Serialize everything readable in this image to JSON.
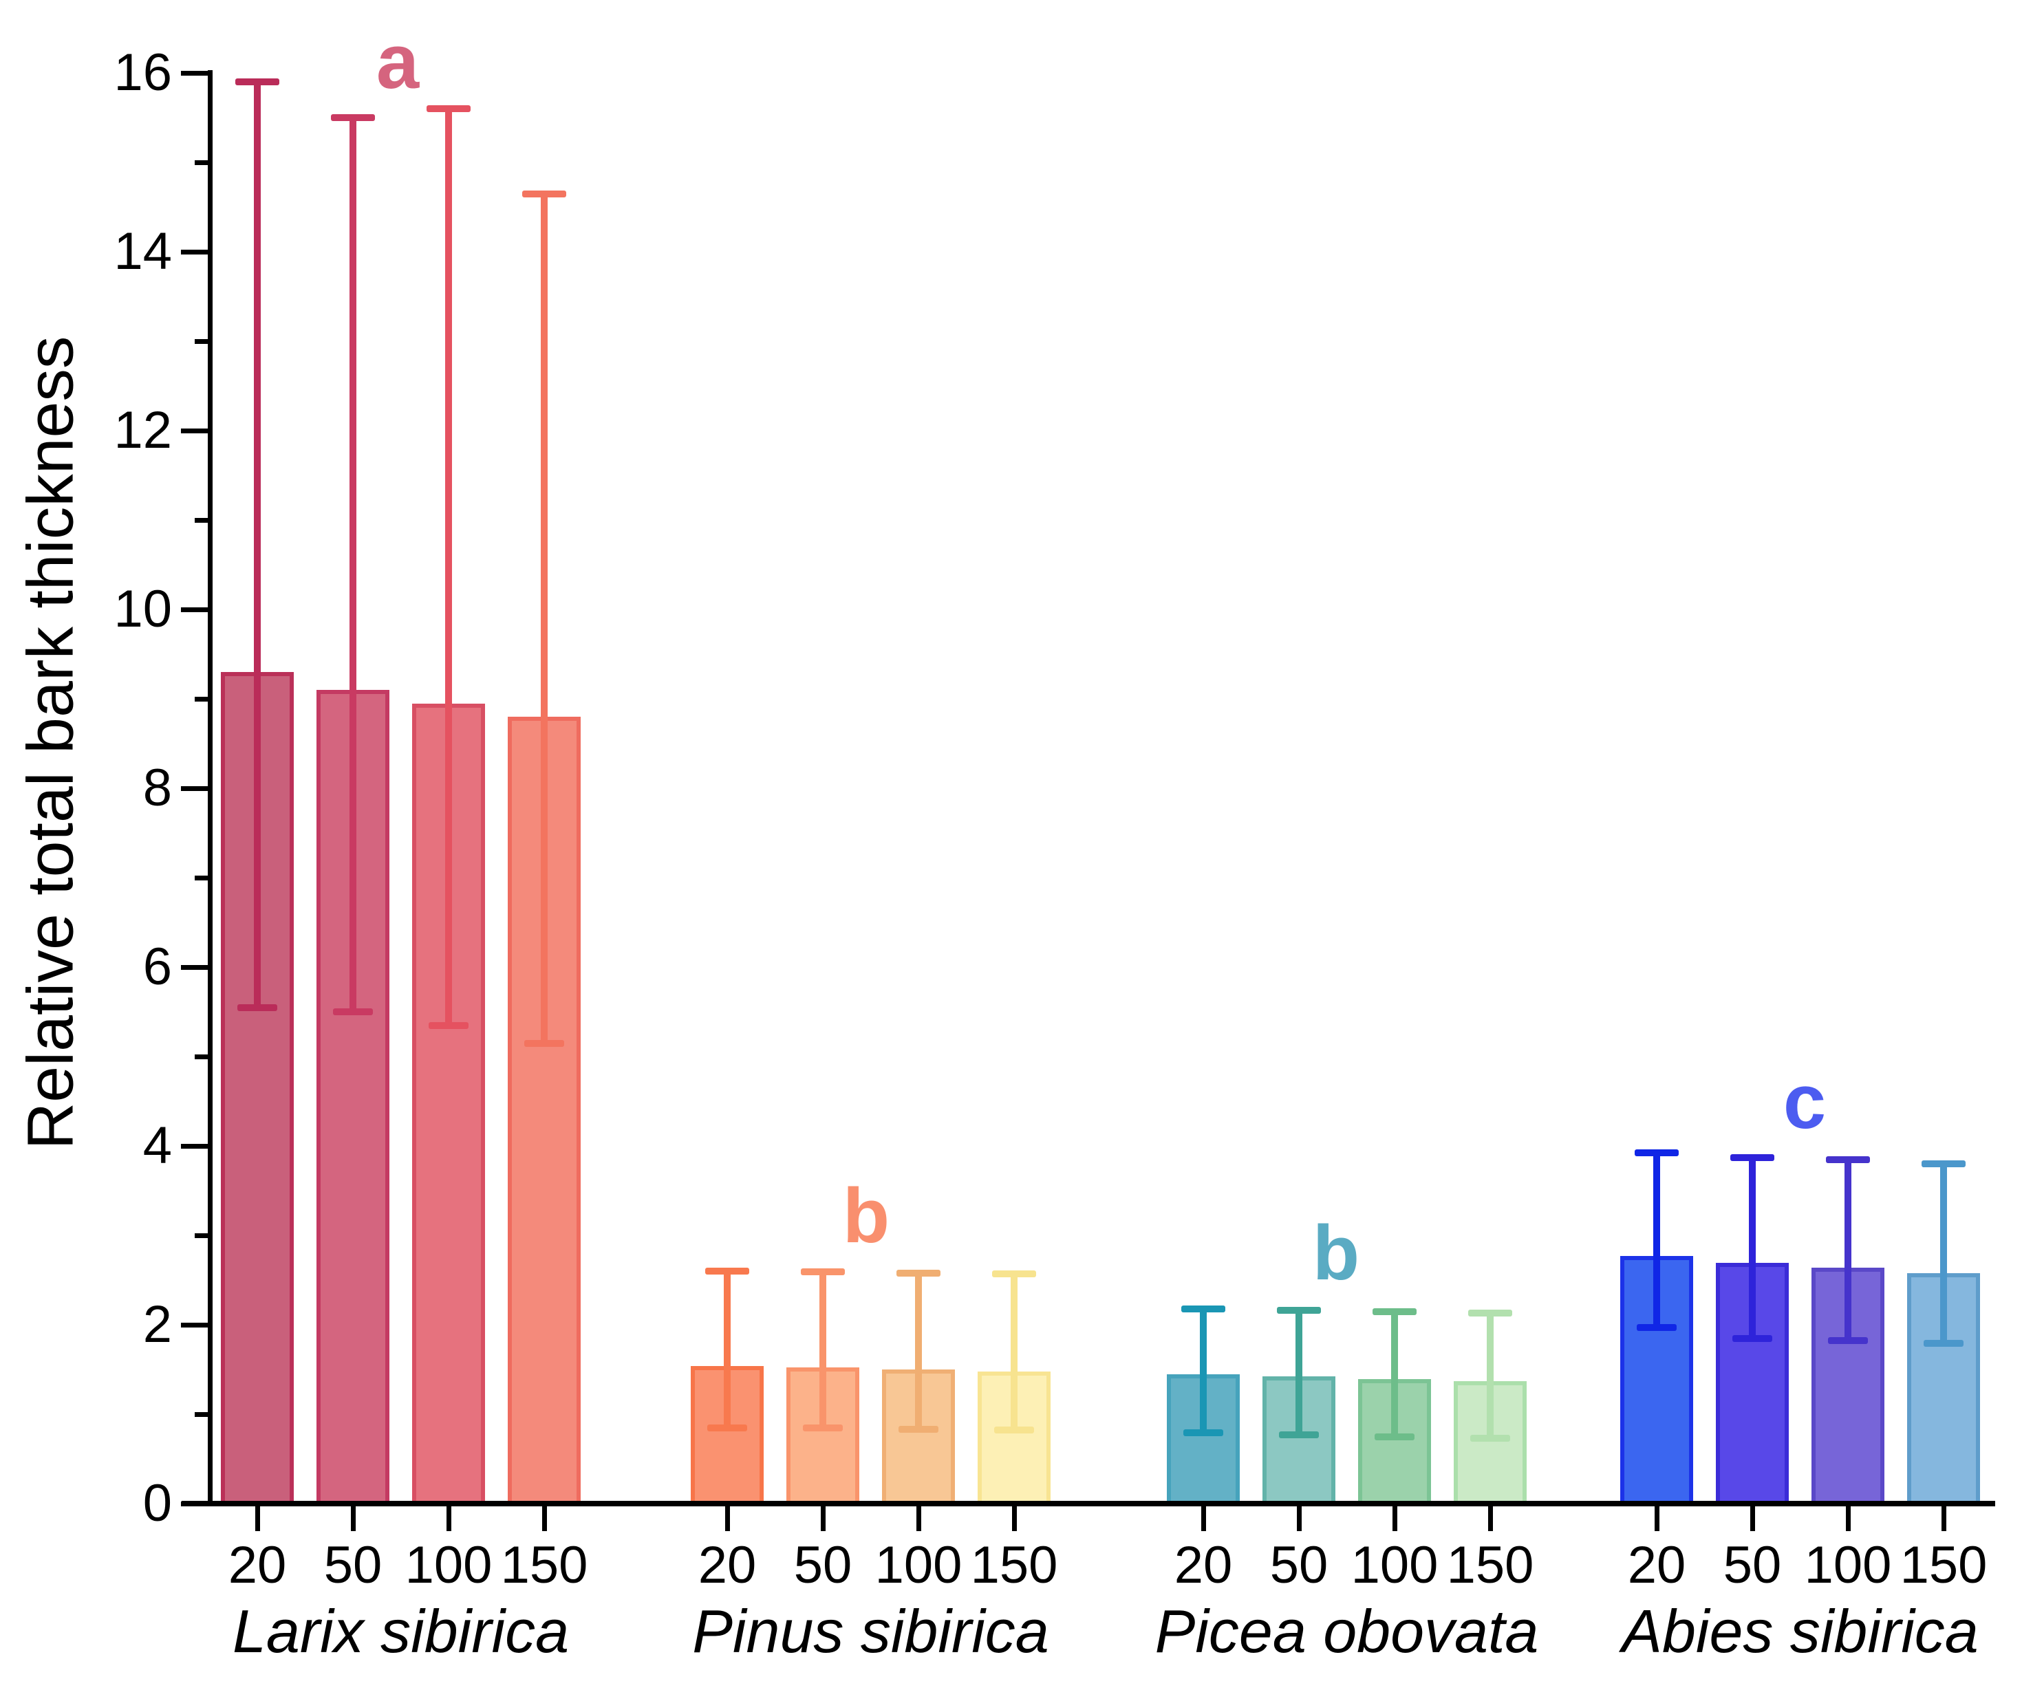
{
  "chart_data": {
    "type": "bar",
    "title": "",
    "xlabel": "",
    "ylabel": "Relative total bark thickness",
    "ylim": [
      0,
      16
    ],
    "y_major_ticks": [
      0,
      2,
      4,
      6,
      8,
      10,
      12,
      14,
      16
    ],
    "y_minor_ticks": [
      1,
      3,
      5,
      7,
      9,
      11,
      13,
      15
    ],
    "grid": "off",
    "legend": "none",
    "error_bars": "asymmetric whiskers with caps",
    "age_categories": [
      "20",
      "50",
      "100",
      "150"
    ],
    "axis_color": "#000000",
    "background_color": "#ffffff",
    "groups": [
      {
        "species": "Larix sibirica",
        "letter": "a",
        "letter_color": "#d5647e",
        "letter_cx": 578,
        "letter_cy": 90,
        "bars": [
          {
            "age": "20",
            "mean": 9.3,
            "err_low": 5.55,
            "err_high": 15.9,
            "fill": "#c9607b",
            "border": "#ba3058",
            "whisker": "#ba2c59"
          },
          {
            "age": "50",
            "mean": 9.1,
            "err_low": 5.5,
            "err_high": 15.5,
            "fill": "#d4657f",
            "border": "#c43a62",
            "whisker": "#c93a62"
          },
          {
            "age": "100",
            "mean": 8.95,
            "err_low": 5.35,
            "err_high": 15.6,
            "fill": "#e6727e",
            "border": "#d84f63",
            "whisker": "#e55260"
          },
          {
            "age": "150",
            "mean": 8.8,
            "err_low": 5.15,
            "err_high": 14.65,
            "fill": "#f48a7b",
            "border": "#ef6c5f",
            "whisker": "#f3745f"
          }
        ]
      },
      {
        "species": "Pinus sibirica",
        "letter": "b",
        "letter_color": "#f98f6e",
        "letter_cx": 1259,
        "letter_cy": 1768,
        "bars": [
          {
            "age": "20",
            "mean": 1.54,
            "err_low": 0.85,
            "err_high": 2.6,
            "fill": "#fa9270",
            "border": "#f77549",
            "whisker": "#f8794e"
          },
          {
            "age": "50",
            "mean": 1.52,
            "err_low": 0.85,
            "err_high": 2.59,
            "fill": "#fcb28a",
            "border": "#f9946b",
            "whisker": "#f9946b"
          },
          {
            "age": "100",
            "mean": 1.5,
            "err_low": 0.83,
            "err_high": 2.58,
            "fill": "#f8c795",
            "border": "#f0af74",
            "whisker": "#f0ae72"
          },
          {
            "age": "150",
            "mean": 1.48,
            "err_low": 0.82,
            "err_high": 2.57,
            "fill": "#fdf0b5",
            "border": "#f8e492",
            "whisker": "#f7e38f"
          }
        ]
      },
      {
        "species": "Picea obovata",
        "letter": "b",
        "letter_color": "#5aabc3",
        "letter_cx": 1942,
        "letter_cy": 1822,
        "bars": [
          {
            "age": "20",
            "mean": 1.45,
            "err_low": 0.79,
            "err_high": 2.18,
            "fill": "#63b1c6",
            "border": "#46a3bc",
            "whisker": "#1a96b4"
          },
          {
            "age": "50",
            "mean": 1.42,
            "err_low": 0.77,
            "err_high": 2.16,
            "fill": "#8cc8c2",
            "border": "#62b3a9",
            "whisker": "#3fa496"
          },
          {
            "age": "100",
            "mean": 1.39,
            "err_low": 0.75,
            "err_high": 2.15,
            "fill": "#9bd2ab",
            "border": "#7cc495",
            "whisker": "#6dbd8a"
          },
          {
            "age": "150",
            "mean": 1.37,
            "err_low": 0.73,
            "err_high": 2.13,
            "fill": "#cbeac6",
            "border": "#abdfab",
            "whisker": "#b2e0ae"
          }
        ]
      },
      {
        "species": "Abies sibirica",
        "letter": "c",
        "letter_color": "#4c5cf0",
        "letter_cx": 2623,
        "letter_cy": 1602,
        "bars": [
          {
            "age": "20",
            "mean": 2.77,
            "err_low": 1.97,
            "err_high": 3.92,
            "fill": "#3b66f0",
            "border": "#1c32e8",
            "whisker": "#1026e6"
          },
          {
            "age": "50",
            "mean": 2.69,
            "err_low": 1.85,
            "err_high": 3.87,
            "fill": "#5848e8",
            "border": "#3b2cd8",
            "whisker": "#2e23da"
          },
          {
            "age": "100",
            "mean": 2.64,
            "err_low": 1.82,
            "err_high": 3.85,
            "fill": "#7765d8",
            "border": "#5a48c8",
            "whisker": "#4533cc"
          },
          {
            "age": "150",
            "mean": 2.58,
            "err_low": 1.79,
            "err_high": 3.8,
            "fill": "#85b7de",
            "border": "#5f9dcb",
            "whisker": "#4b97cb"
          }
        ]
      }
    ]
  }
}
